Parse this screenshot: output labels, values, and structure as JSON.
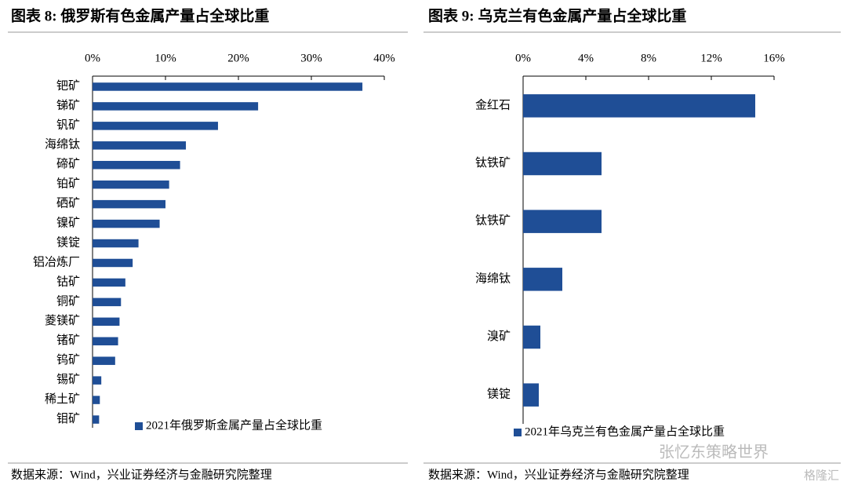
{
  "chart_data": [
    {
      "type": "hbar",
      "title": "图表 8:  俄罗斯有色金属产量占全球比重",
      "categories": [
        "钯矿",
        "锑矿",
        "钒矿",
        "海绵钛",
        "碲矿",
        "铂矿",
        "硒矿",
        "镍矿",
        "镁锭",
        "铝冶炼厂",
        "钴矿",
        "铜矿",
        "菱镁矿",
        "锗矿",
        "钨矿",
        "锡矿",
        "稀土矿",
        "钼矿"
      ],
      "series": [
        {
          "name": "2021年俄罗斯金属产量占全球比重",
          "color": "#1f4e96",
          "values": [
            37,
            22.7,
            17.2,
            12.8,
            12.0,
            10.5,
            10.0,
            9.2,
            6.3,
            5.5,
            4.5,
            3.9,
            3.7,
            3.5,
            3.1,
            1.2,
            1.0,
            0.9
          ]
        }
      ],
      "xlim": [
        0,
        40
      ],
      "xticks": [
        {
          "value": 0,
          "label": "0%"
        },
        {
          "value": 10,
          "label": "10%"
        },
        {
          "value": 20,
          "label": "20%"
        },
        {
          "value": 30,
          "label": "30%"
        },
        {
          "value": 40,
          "label": "40%"
        }
      ],
      "source": "数据来源：Wind，兴业证券经济与金融研究院整理"
    },
    {
      "type": "hbar",
      "title": "图表 9:  乌克兰有色金属产量占全球比重",
      "categories": [
        "金红石",
        "钛铁矿",
        "钛铁矿",
        "海绵钛",
        "溴矿",
        "镁锭"
      ],
      "series": [
        {
          "name": "2021年乌克兰有色金属产量占全球比重",
          "color": "#1f4e96",
          "values": [
            14.8,
            5.0,
            5.0,
            2.5,
            1.1,
            1.0
          ]
        }
      ],
      "xlim": [
        0,
        16
      ],
      "xticks": [
        {
          "value": 0,
          "label": "0%"
        },
        {
          "value": 4,
          "label": "4%"
        },
        {
          "value": 8,
          "label": "8%"
        },
        {
          "value": 12,
          "label": "12%"
        },
        {
          "value": 16,
          "label": "16%"
        }
      ],
      "source": "数据来源：Wind，兴业证券经济与金融研究院整理"
    }
  ],
  "watermark": [
    "张忆东策略世界",
    "格隆汇"
  ]
}
